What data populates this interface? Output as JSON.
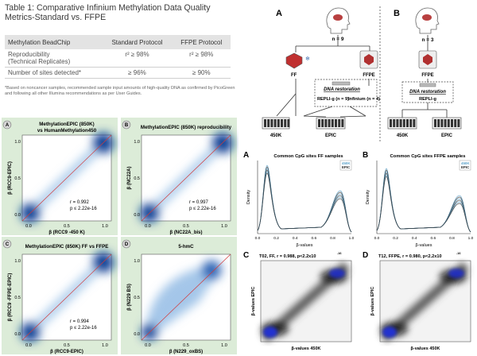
{
  "table1": {
    "title": "Table 1: Comparative Infinium Methylation Data Quality Metrics-Standard vs. FFPE",
    "headers": [
      "Methylation BeadChip",
      "Standard Protocol",
      "FFPE Protocol"
    ],
    "rows": [
      {
        "label": "Reproducibility",
        "sublabel": "(Technical Replicates)",
        "standard": "r² ≥ 98%",
        "ffpe": "r² ≥ 98%"
      },
      {
        "label": "Number of sites detected*",
        "sublabel": "",
        "standard": "≥ 96%",
        "ffpe": "≥ 90%"
      }
    ],
    "footnote": "*Based on noncancer samples, recommended sample input amounts of high-quality DNA as confirmed by PicoGreen and following all other Illumina recommendations as per User Guides."
  },
  "scatter_panels": [
    {
      "letter": "A",
      "title_line1": "MethylationEPIC (850K)",
      "title_line2": "vs HumanMethylation450",
      "xlabel": "β (RCC9 -450 K)",
      "ylabel": "β (RCC9-EPIC)",
      "stat1": "r = 0.992",
      "stat2": "p ≤ 2.22e-16",
      "xticks": [
        "0.0",
        "0.5",
        "1.0"
      ],
      "yticks": [
        "0.0",
        "0.5",
        "1.0"
      ]
    },
    {
      "letter": "B",
      "title_line1": "MethylationEPIC (850K) reproducibility",
      "title_line2": "",
      "xlabel": "β (NC22A_bis)",
      "ylabel": "β (NC22A)",
      "stat1": "r = 0.997",
      "stat2": "p ≤ 2.22e-16",
      "xticks": [
        "0.0",
        "0.5",
        "1.0"
      ],
      "yticks": [
        "0.0",
        "0.5",
        "1.0"
      ]
    },
    {
      "letter": "C",
      "title_line1": "MethylationEPIC (850K) FF vs FFPE",
      "title_line2": "",
      "xlabel": "β (RCC9-EPIC)",
      "ylabel": "β (RCC9 -FFPE-EPIC)",
      "stat1": "r = 0.994",
      "stat2": "p ≤ 2.22e-16",
      "xticks": [
        "0.0",
        "0.5",
        "1.0"
      ],
      "yticks": [
        "0.0",
        "0.5",
        "1.0"
      ]
    },
    {
      "letter": "D",
      "title_line1": "5-hmC",
      "title_line2": "",
      "xlabel": "β (N229_oxBS)",
      "ylabel": "β (N229 BS)",
      "stat1": "",
      "stat2": "",
      "xticks": [
        "0.0",
        "0.5",
        "1.0"
      ],
      "yticks": [
        "0.0",
        "0.5",
        "1.0"
      ]
    }
  ],
  "workflow": {
    "letter_a": "A",
    "letter_b": "B",
    "n_a": "n = 9",
    "n_b": "n = 3",
    "ff": "FF",
    "ffpe_a": "FFPE",
    "ffpe_b": "FFPE",
    "dna_restoration": "DNA restoration",
    "repli_a": "REPLI-g (n = 9)",
    "infinium": "Infinium (n = 4)",
    "repli_b": "REPLI-g",
    "chip_450k_a": "450K",
    "chip_epic_a": "EPIC",
    "chip_450k_b": "450K",
    "chip_epic_b": "EPIC"
  },
  "density_panels": [
    {
      "letter": "A",
      "title": "Common CpG sites FF samples",
      "ylabel": "Density",
      "xlabel": "β-values",
      "legend": [
        "450K",
        "EPIC"
      ],
      "xticks": [
        "0.0",
        "0.2",
        "0.4",
        "0.6",
        "0.8",
        "1.0"
      ]
    },
    {
      "letter": "B",
      "title": "Common CpG sites FFPE samples",
      "ylabel": "Density",
      "xlabel": "β-values",
      "legend": [
        "450K",
        "EPIC"
      ],
      "xticks": [
        "0.0",
        "0.2",
        "0.4",
        "0.6",
        "0.8",
        "1.0"
      ]
    }
  ],
  "smooth_panels": [
    {
      "letter": "C",
      "title": "T02, FF, r = 0.988, p<2.2x10",
      "title_exp": "-16",
      "xlabel": "β-values 450K",
      "ylabel": "β-values EPIC"
    },
    {
      "letter": "D",
      "title": "T12, FFPE, r = 0.980, p<2.2x10",
      "title_exp": "-16",
      "xlabel": "β-values 450K",
      "ylabel": "β-values EPIC"
    }
  ],
  "colors": {
    "panel_bg": "#dcecd8",
    "heat_blue": "#1d5fb0",
    "diag_red": "#d23a3a",
    "line_450k": "#5aa0c8",
    "line_epic": "#2a2a2a",
    "density_blue": "#2030d0"
  }
}
